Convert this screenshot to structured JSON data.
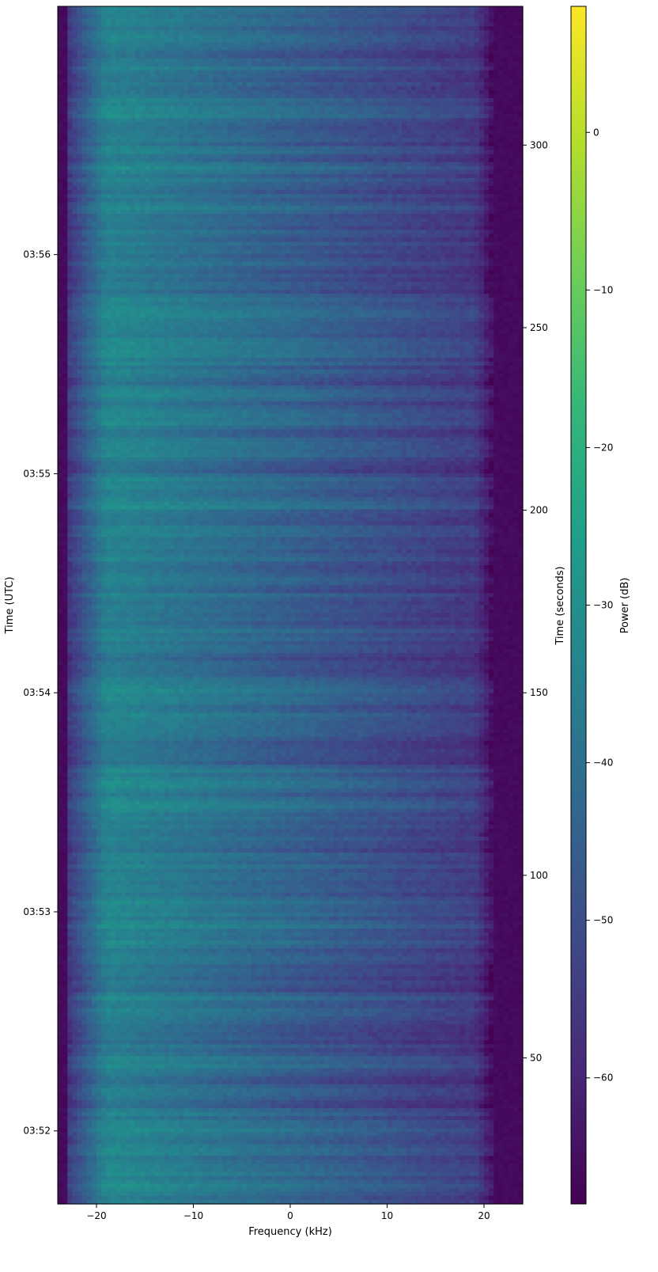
{
  "chart_data": {
    "type": "heatmap",
    "title": "",
    "xlabel": "Frequency (kHz)",
    "ylabel_left": "Time (UTC)",
    "ylabel_right": "Time (seconds)",
    "xlim": [
      -24,
      24
    ],
    "x_ticks": [
      {
        "value": -20,
        "label": "−20"
      },
      {
        "value": -10,
        "label": "−10"
      },
      {
        "value": 0,
        "label": "0"
      },
      {
        "value": 10,
        "label": "10"
      },
      {
        "value": 20,
        "label": "20"
      }
    ],
    "right_ylim": [
      10,
      338
    ],
    "right_y_ticks": [
      {
        "value": 50,
        "label": "50"
      },
      {
        "value": 100,
        "label": "100"
      },
      {
        "value": 150,
        "label": "150"
      },
      {
        "value": 200,
        "label": "200"
      },
      {
        "value": 250,
        "label": "250"
      },
      {
        "value": 300,
        "label": "300"
      }
    ],
    "left_y_ticks": [
      {
        "seconds": 30,
        "label": "03:52"
      },
      {
        "seconds": 90,
        "label": "03:53"
      },
      {
        "seconds": 150,
        "label": "03:54"
      },
      {
        "seconds": 210,
        "label": "03:55"
      },
      {
        "seconds": 270,
        "label": "03:56"
      }
    ],
    "colorbar": {
      "label": "Power (dB)",
      "colormap": "viridis",
      "range": [
        -68,
        8
      ],
      "ticks": [
        {
          "value": 0,
          "label": "0"
        },
        {
          "value": -10,
          "label": "−10"
        },
        {
          "value": -20,
          "label": "−20"
        },
        {
          "value": -30,
          "label": "−30"
        },
        {
          "value": -40,
          "label": "−40"
        },
        {
          "value": -50,
          "label": "−50"
        },
        {
          "value": -60,
          "label": "−60"
        }
      ]
    },
    "colors": {
      "viridis_stops": [
        "#440154",
        "#482878",
        "#3e4a89",
        "#31688e",
        "#26828e",
        "#1f9e89",
        "#35b779",
        "#6ece58",
        "#b5de2b",
        "#fde725"
      ]
    }
  }
}
